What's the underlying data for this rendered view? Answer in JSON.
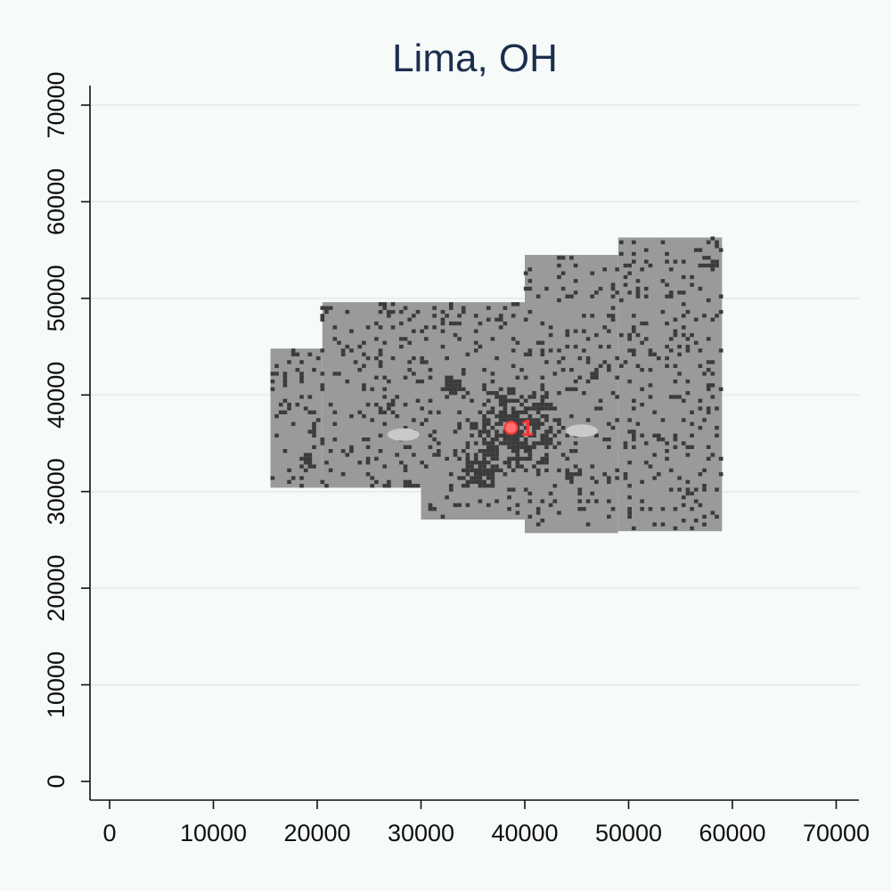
{
  "chart_data": {
    "type": "heatmap",
    "title": "Lima, OH",
    "xlabel": "",
    "ylabel": "",
    "xlim": [
      -2000,
      72000
    ],
    "ylim": [
      -2000,
      72000
    ],
    "x_ticks": [
      0,
      10000,
      20000,
      30000,
      40000,
      50000,
      60000,
      70000
    ],
    "y_ticks": [
      0,
      10000,
      20000,
      30000,
      40000,
      50000,
      60000,
      70000
    ],
    "x_tick_labels": [
      "0",
      "10000",
      "20000",
      "30000",
      "40000",
      "50000",
      "60000",
      "70000"
    ],
    "y_tick_labels": [
      "0",
      "10000",
      "20000",
      "30000",
      "40000",
      "50000",
      "60000",
      "70000"
    ],
    "grid": "horizontal",
    "legend": "none",
    "study_area": [
      {
        "x0": 15500,
        "x1": 20500,
        "y0": 30400,
        "y1": 44800
      },
      {
        "x0": 20500,
        "x1": 30000,
        "y0": 30400,
        "y1": 49600
      },
      {
        "x0": 30000,
        "x1": 40000,
        "y0": 27100,
        "y1": 49600
      },
      {
        "x0": 40000,
        "x1": 49000,
        "y0": 25700,
        "y1": 54500
      },
      {
        "x0": 49000,
        "x1": 59000,
        "y0": 25900,
        "y1": 56300
      }
    ],
    "clusters": [
      {
        "x": 39200,
        "y": 36400,
        "r": 4500
      },
      {
        "x": 33000,
        "y": 41000,
        "r": 1400
      },
      {
        "x": 20800,
        "y": 48400,
        "r": 900
      },
      {
        "x": 19000,
        "y": 33000,
        "r": 900
      },
      {
        "x": 57800,
        "y": 53500,
        "r": 900
      },
      {
        "x": 35500,
        "y": 32000,
        "r": 2200
      }
    ],
    "light_patches": [
      {
        "x": 28300,
        "y": 35900
      },
      {
        "x": 45500,
        "y": 36300
      }
    ],
    "annotations": [
      {
        "label": "1",
        "x": 39700,
        "y": 36600
      }
    ],
    "colors": {
      "background": "#f6faf8",
      "area_fill": "#9a9a9a",
      "cell_dark": "#3b3b3b",
      "cell_light": "#c9c9c9",
      "gridline": "#e6eeee",
      "axis": "#111111",
      "title": "#1c2e4f",
      "marker": "#ff3030"
    }
  }
}
